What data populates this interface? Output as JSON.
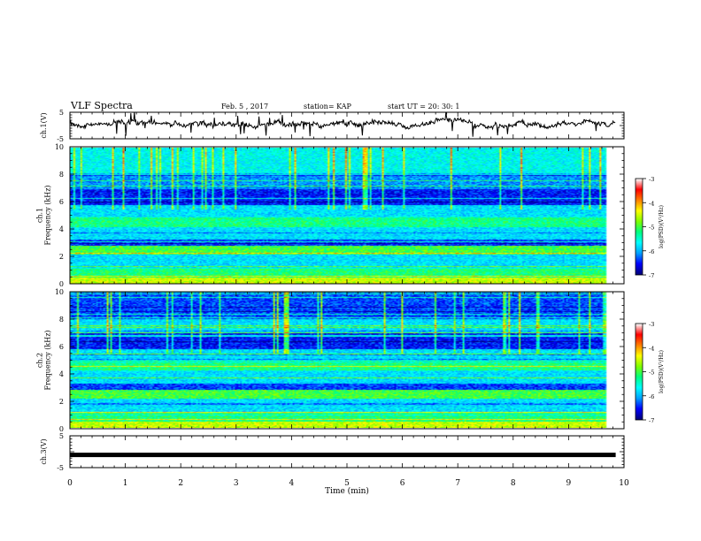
{
  "header": {
    "title": "VLF Spectra",
    "date": "Feb. 5 , 2017",
    "station": "station= KAP",
    "start_ut": "start UT =   20: 30: 1"
  },
  "chart_data": [
    {
      "type": "line",
      "ylabel": "ch.1(V)",
      "ylim": [
        -5,
        5
      ],
      "yticks": [
        "5",
        "-5"
      ],
      "note": "noisy waveform around +1 V with occasional downward spikes"
    },
    {
      "type": "heatmap",
      "ylabel": "ch.1\nFrequency  (kHz)",
      "ylim": [
        0,
        10
      ],
      "yticks": [
        "0",
        "2",
        "4",
        "6",
        "8",
        "10"
      ],
      "colorbar": {
        "label": "log(PSD)(V²/Hz)",
        "range": [
          -7,
          -3
        ],
        "ticks": [
          "-3",
          "-4",
          "-5",
          "-6",
          "-7"
        ]
      }
    },
    {
      "type": "heatmap",
      "ylabel": "ch.2\nFrequency  (kHz)",
      "ylim": [
        0,
        10
      ],
      "yticks": [
        "0",
        "2",
        "4",
        "6",
        "8",
        "10"
      ],
      "colorbar": {
        "label": "log(PSD)(V²/Hz)",
        "range": [
          -7,
          -3
        ],
        "ticks": [
          "-3",
          "-4",
          "-5",
          "-6",
          "-7"
        ]
      }
    },
    {
      "type": "line",
      "ylabel": "ch.3(V)",
      "ylim": [
        -5,
        5
      ],
      "yticks": [
        "5",
        "-5"
      ],
      "value": -1
    }
  ],
  "xaxis": {
    "label": "Time  (min)",
    "range": [
      0,
      10
    ],
    "ticks": [
      "0",
      "1",
      "2",
      "3",
      "4",
      "5",
      "6",
      "7",
      "8",
      "9",
      "10"
    ],
    "data_end": 9.85
  },
  "colors": {
    "colormap": [
      "#00007a",
      "#0000ff",
      "#00a0ff",
      "#00ffff",
      "#00ff80",
      "#80ff00",
      "#ffff00",
      "#ff8000",
      "#ff0000",
      "#ffffff"
    ]
  }
}
